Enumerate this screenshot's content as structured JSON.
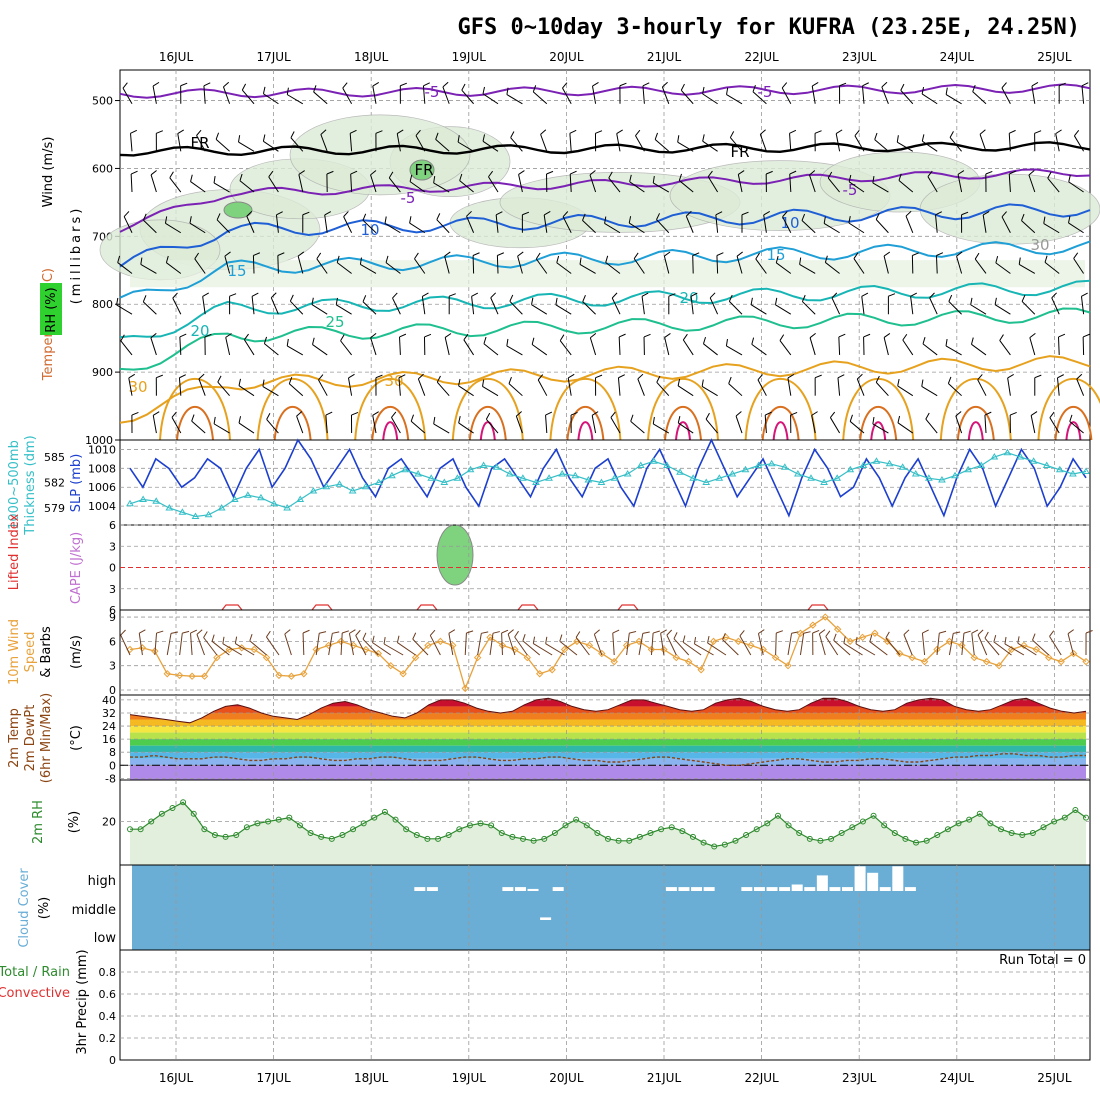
{
  "title": "GFS 0~10day 3-hourly for KUFRA (23.25E, 24.25N)",
  "dates": [
    "16JUL",
    "17JUL",
    "18JUL",
    "19JUL",
    "20JUL",
    "21JUL",
    "22JUL",
    "23JUL",
    "24JUL",
    "25JUL"
  ],
  "labels": {
    "upper": [
      {
        "text": "Wind (m/s)",
        "color": "#000000"
      },
      {
        "text": "Temperature (°C)",
        "color": "#7b3fbf"
      },
      {
        "text": "RH (%)",
        "color": "#2e8b2e"
      },
      {
        "text": "(millibars)",
        "color": "#000000"
      }
    ],
    "panel2": [
      "1000~500mb",
      "Thickness (dm)",
      "SLP (mb)"
    ],
    "panel3": [
      "Lifted Index",
      "CAPE (J/kg)"
    ],
    "panel4": [
      "10m Wind",
      "Speed",
      "& Barbs",
      "(m/s)"
    ],
    "panel5": [
      "2m Temp",
      "2m DewPt",
      "(6hr Min/Max)",
      "(°C)"
    ],
    "panel6": [
      "2m RH",
      "(%)"
    ],
    "panel7": [
      "Cloud Cover",
      "(%)"
    ],
    "panel8": [
      "Total / Rain",
      "Convective",
      "3hr Precip (mm)"
    ],
    "run_total": "Run Total = 0"
  },
  "colors": {
    "temp_lines": "#7b22b5",
    "fr_line": "#000000",
    "slp": "#1c3fcf",
    "thickness": "#35bfc7",
    "wind_speed": "#e8a23c",
    "dewpoint": "#8b4513",
    "rh_line": "#2e8b2e",
    "cloud": "#6aaed6",
    "li": "#e03030"
  },
  "chart_data": [
    {
      "type": "line",
      "title": "",
      "ylabel": "millibars",
      "yticks": [
        500,
        600,
        700,
        800,
        900,
        1000
      ],
      "ylim": [
        1000,
        455
      ],
      "isotherms": [
        {
          "label": "-5",
          "pressure": 490
        },
        {
          "label": "FR",
          "pressure": 575
        },
        {
          "label": "-5",
          "pressure": 640
        },
        {
          "label": "10",
          "pressure": 695
        },
        {
          "label": "15",
          "pressure": 750
        },
        {
          "label": "20",
          "pressure": 810
        },
        {
          "label": "25",
          "pressure": 850
        },
        {
          "label": "30",
          "pressure": 920
        }
      ],
      "contour_labels": [
        "-5",
        "-5",
        "FR",
        "FR",
        "FR",
        "-5",
        "-5",
        "10",
        "10",
        "15",
        "15",
        "20",
        "20",
        "25",
        "30",
        "30",
        "30"
      ]
    },
    {
      "type": "line",
      "series": [
        {
          "name": "SLP (mb)",
          "values": [
            1008,
            1006,
            1009,
            1008,
            1006,
            1007,
            1009,
            1008,
            1005,
            1008,
            1010,
            1006,
            1008,
            1011,
            1009,
            1006,
            1008,
            1010,
            1007,
            1005,
            1008,
            1009,
            1007,
            1005,
            1008,
            1009,
            1006,
            1004,
            1008,
            1009,
            1007,
            1005,
            1008,
            1010,
            1007,
            1005,
            1008,
            1009,
            1006,
            1004,
            1008,
            1010,
            1007,
            1004,
            1008,
            1011,
            1008,
            1005,
            1007,
            1009,
            1006,
            1003,
            1007,
            1010,
            1008,
            1005,
            1006,
            1009,
            1007,
            1004,
            1007,
            1009,
            1006,
            1003,
            1007,
            1010,
            1008,
            1004,
            1007,
            1010,
            1008,
            1004,
            1006,
            1009,
            1007
          ]
        },
        {
          "name": "1000~500mb Thickness (dm)",
          "values": [
            579.5,
            580.0,
            579.8,
            579.0,
            578.5,
            578.0,
            578.2,
            579.0,
            580.0,
            580.5,
            580.2,
            579.5,
            579.0,
            580.0,
            581.0,
            581.5,
            581.8,
            581.0,
            581.5,
            582.0,
            582.8,
            583.5,
            583.0,
            582.5,
            582.0,
            582.5,
            583.5,
            584.0,
            583.8,
            583.0,
            582.5,
            582.0,
            582.5,
            583.0,
            582.8,
            582.3,
            582.0,
            582.5,
            583.0,
            584.0,
            584.5,
            584.0,
            583.2,
            582.5,
            582.0,
            582.5,
            583.0,
            583.5,
            584.0,
            584.2,
            583.8,
            583.0,
            582.5,
            582.0,
            582.5,
            583.5,
            584.0,
            584.5,
            584.2,
            583.8,
            583.0,
            582.5,
            582.3,
            582.8,
            583.5,
            584.0,
            585.0,
            585.5,
            585.0,
            584.5,
            584.0,
            583.5,
            583.0,
            583.3
          ]
        }
      ],
      "ylim_slp": [
        1002,
        1011
      ],
      "yticks_slp": [
        1004,
        1006,
        1008,
        1010
      ],
      "yticks_thickness": [
        579,
        582,
        585
      ]
    },
    {
      "type": "line",
      "series": [
        {
          "name": "Lifted Index",
          "values": [
            null,
            null,
            null,
            null,
            null,
            null,
            null,
            null,
            null,
            null,
            null,
            null,
            null,
            null,
            null,
            null,
            null,
            null,
            null,
            null,
            null,
            null,
            5.6,
            5.6,
            5.6,
            null,
            null,
            null,
            null,
            null,
            null,
            null,
            null,
            null,
            null,
            null,
            null,
            null,
            null,
            null,
            null,
            null,
            null,
            null,
            null,
            null,
            null,
            null,
            null,
            null,
            null,
            null,
            5.6,
            5.6,
            5.6,
            null,
            null,
            null,
            null,
            null,
            null,
            null,
            null,
            null,
            null,
            null,
            null,
            null,
            null,
            null,
            null,
            null,
            null,
            null
          ]
        }
      ],
      "yticks": [
        -6,
        -3,
        0,
        3,
        6
      ],
      "ylim": [
        -6,
        6
      ]
    },
    {
      "type": "line",
      "series": [
        {
          "name": "10m Wind Speed",
          "values": [
            5.0,
            5.2,
            4.8,
            2.0,
            1.8,
            1.7,
            1.7,
            4.0,
            5.0,
            5.2,
            5.0,
            4.0,
            1.8,
            1.7,
            2.0,
            5.0,
            5.5,
            6.0,
            5.5,
            5.0,
            4.5,
            3.0,
            2.0,
            4.0,
            5.5,
            6.0,
            5.5,
            0.2,
            4.0,
            6.5,
            5.5,
            5.0,
            4.0,
            2.0,
            2.5,
            5.0,
            6.0,
            5.5,
            4.5,
            3.5,
            5.5,
            6.0,
            5.0,
            5.0,
            4.0,
            3.5,
            2.5,
            6.0,
            6.5,
            6.0,
            5.5,
            5.0,
            4.0,
            3.0,
            7.0,
            8.0,
            9.0,
            7.5,
            6.0,
            6.5,
            7.0,
            6.0,
            4.5,
            4.0,
            3.5,
            5.0,
            6.0,
            5.5,
            4.0,
            3.5,
            3.0,
            5.0,
            5.5,
            5.0,
            4.0,
            3.5,
            4.5,
            3.5
          ]
        }
      ],
      "yticks": [
        0,
        3,
        6,
        9
      ],
      "ylim": [
        0,
        9.5
      ]
    },
    {
      "type": "area",
      "series": [
        {
          "name": "2m Temp",
          "values": [
            31,
            30,
            29,
            28,
            27,
            26,
            29,
            33,
            36,
            37,
            35,
            32,
            30,
            29,
            28,
            31,
            35,
            38,
            39,
            37,
            34,
            32,
            30,
            29,
            32,
            37,
            40,
            40,
            38,
            35,
            33,
            32,
            33,
            37,
            40,
            41,
            39,
            36,
            34,
            33,
            34,
            37,
            40,
            40,
            38,
            36,
            34,
            33,
            34,
            38,
            40,
            41,
            39,
            36,
            34,
            33,
            34,
            38,
            41,
            41,
            39,
            36,
            34,
            33,
            34,
            38,
            40,
            41,
            40,
            36,
            34,
            33,
            34,
            37,
            40,
            41,
            38,
            35,
            33,
            32,
            33
          ]
        },
        {
          "name": "2m DewPt",
          "values": [
            5,
            5,
            6,
            5,
            4,
            4,
            4,
            5,
            5,
            4,
            3,
            3,
            4,
            4,
            5,
            5,
            4,
            3,
            3,
            4,
            4,
            5,
            5,
            4,
            3,
            3,
            3,
            4,
            5,
            5,
            4,
            3,
            3,
            4,
            4,
            5,
            5,
            4,
            3,
            3,
            2,
            2,
            3,
            4,
            5,
            5,
            4,
            3,
            2,
            1,
            0,
            0,
            1,
            2,
            3,
            4,
            4,
            3,
            2,
            2,
            3,
            3,
            4,
            4,
            3,
            2,
            2,
            3,
            4,
            5,
            5,
            6,
            6,
            7,
            7,
            6,
            6,
            5,
            5,
            6,
            6
          ]
        }
      ],
      "yticks": [
        -8,
        0,
        8,
        16,
        24,
        32,
        40
      ],
      "ylim": [
        -8,
        43
      ]
    },
    {
      "type": "area",
      "series": [
        {
          "name": "2m RH",
          "values": [
            16,
            16,
            20,
            24,
            27,
            30,
            24,
            16,
            13,
            12,
            13,
            17,
            19,
            20,
            21,
            22,
            18,
            14,
            12,
            11,
            13,
            16,
            19,
            22,
            25,
            21,
            16,
            13,
            11,
            11,
            13,
            16,
            18,
            19,
            18,
            14,
            12,
            11,
            10,
            11,
            14,
            18,
            21,
            18,
            14,
            11,
            10,
            10,
            12,
            14,
            16,
            17,
            15,
            12,
            9,
            7,
            8,
            10,
            13,
            16,
            19,
            23,
            18,
            14,
            11,
            10,
            11,
            14,
            17,
            20,
            23,
            18,
            14,
            11,
            9,
            10,
            13,
            16,
            19,
            21,
            24,
            19,
            16,
            14,
            13,
            14,
            17,
            20,
            22,
            26,
            22
          ]
        }
      ],
      "yticks": [
        20
      ],
      "ylim": [
        0,
        40
      ]
    },
    {
      "type": "bar",
      "ytick_labels": [
        "high",
        "middle",
        "low"
      ],
      "series": [
        {
          "name": "high",
          "values": [
            0,
            0,
            0,
            0,
            0,
            0,
            0,
            0,
            0,
            0,
            0,
            0,
            0,
            0,
            0,
            0,
            0,
            0,
            0,
            0,
            0,
            0,
            0,
            15,
            15,
            0,
            0,
            0,
            0,
            0,
            15,
            15,
            8,
            0,
            15,
            0,
            0,
            0,
            0,
            0,
            0,
            0,
            0,
            15,
            15,
            15,
            15,
            0,
            0,
            15,
            15,
            15,
            15,
            25,
            15,
            60,
            15,
            15,
            95,
            70,
            15,
            95,
            15,
            0,
            0,
            0,
            0,
            0,
            0,
            0,
            0,
            0,
            0,
            0,
            0,
            0,
            0
          ]
        },
        {
          "name": "middle",
          "values": [
            0,
            0,
            0,
            0,
            0,
            0,
            0,
            0,
            0,
            0,
            0,
            0,
            0,
            0,
            0,
            0,
            0,
            0,
            0,
            0,
            0,
            0,
            0,
            0,
            0,
            0,
            0,
            0,
            0,
            0,
            0,
            0,
            0,
            10,
            0,
            0,
            0,
            0,
            0,
            0,
            0,
            0,
            0,
            0,
            0,
            0,
            0,
            0,
            0,
            0,
            0,
            0,
            0,
            0,
            0,
            0,
            0,
            0,
            0,
            0,
            0,
            0,
            0,
            0,
            0,
            0,
            0,
            0,
            0,
            0,
            0,
            0,
            0,
            0,
            0,
            0,
            0
          ]
        },
        {
          "name": "low",
          "values": [
            0,
            0,
            0,
            0,
            0,
            0,
            0,
            0,
            0,
            0,
            0,
            0,
            0,
            0,
            0,
            0,
            0,
            0,
            0,
            0,
            0,
            0,
            0,
            0,
            0,
            0,
            0,
            0,
            0,
            0,
            0,
            0,
            0,
            0,
            0,
            0,
            0,
            0,
            0,
            0,
            0,
            0,
            0,
            0,
            0,
            0,
            0,
            0,
            0,
            0,
            0,
            0,
            0,
            0,
            0,
            0,
            0,
            0,
            0,
            0,
            0,
            0,
            0,
            0,
            0,
            0,
            0,
            0,
            0,
            0,
            0,
            0,
            0,
            0,
            0,
            0,
            0
          ]
        }
      ]
    },
    {
      "type": "bar",
      "series": [
        {
          "name": "Total / Rain",
          "values": []
        },
        {
          "name": "Convective",
          "values": []
        }
      ],
      "yticks": [
        0,
        0.2,
        0.4,
        0.6,
        0.8
      ],
      "ylim": [
        0,
        1.0
      ]
    }
  ]
}
